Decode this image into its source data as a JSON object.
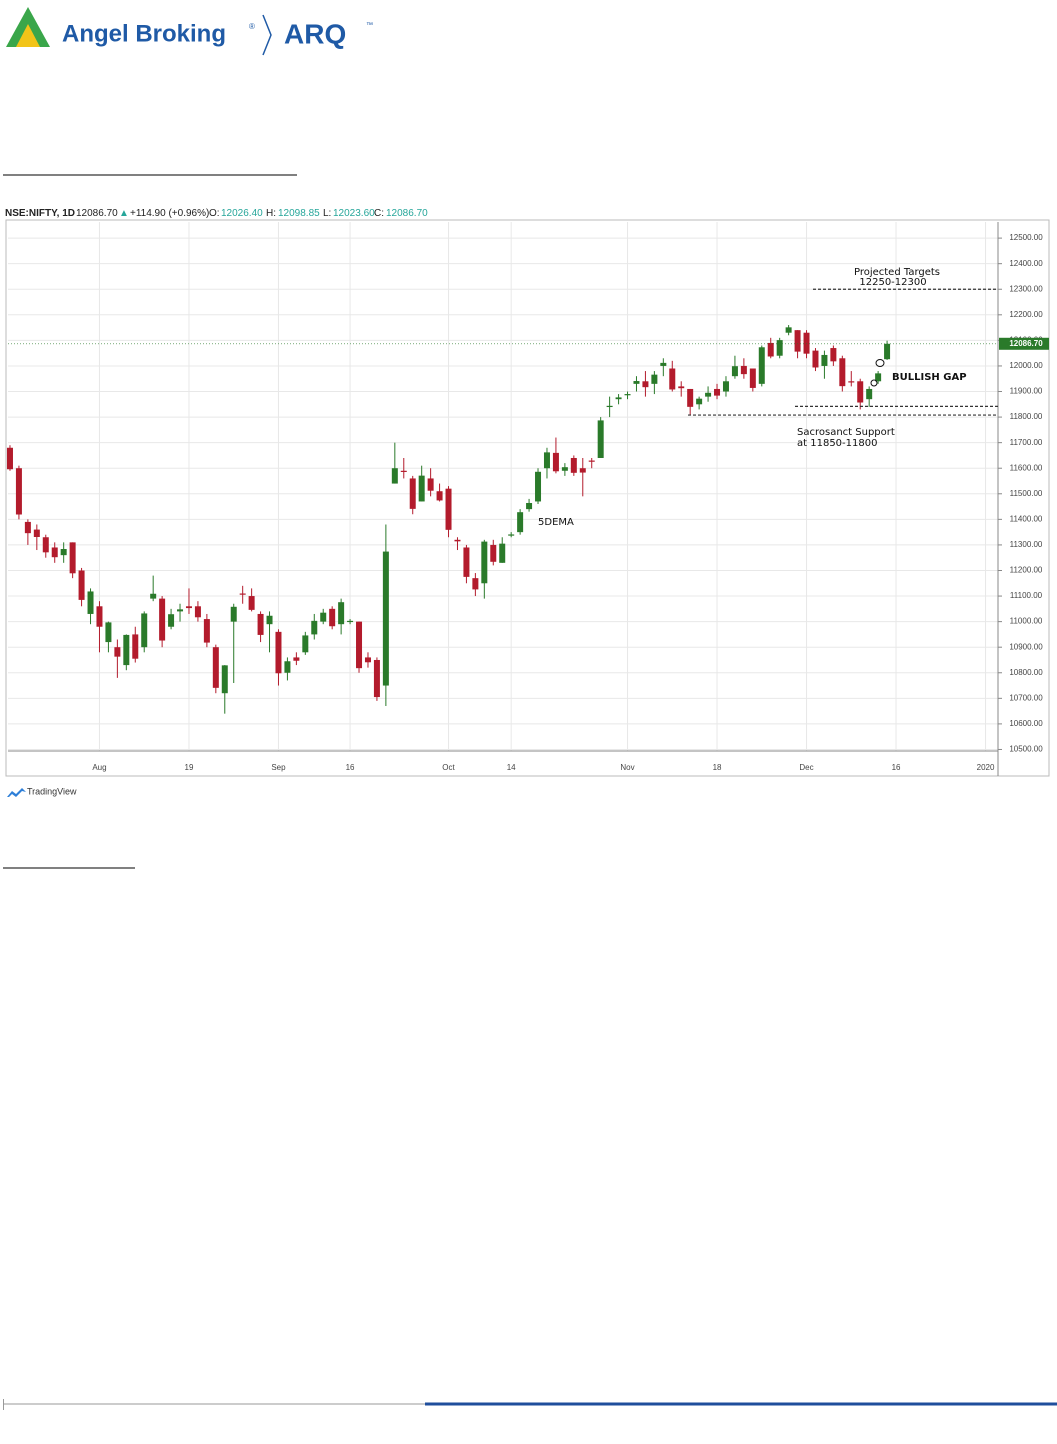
{
  "header": {
    "brand": "Angel Broking",
    "registered": "®",
    "product": "ARQ",
    "product_mark": "™"
  },
  "chart_data": {
    "type": "candlestick",
    "legend": {
      "symbol": "NSE:NIFTY, 1D",
      "last": "12086.70",
      "arrow": "▲",
      "change": "+114.90 (+0.96%)",
      "o_label": "O:",
      "open": "12026.40",
      "h_label": "H:",
      "high": "12098.85",
      "l_label": "L:",
      "low": "12023.60",
      "c_label": "C:",
      "close": "12086.70"
    },
    "categories": [
      null,
      null,
      null,
      null,
      null,
      null,
      null,
      null,
      null,
      null,
      "Aug",
      null,
      null,
      null,
      null,
      null,
      null,
      null,
      null,
      null,
      "19",
      null,
      null,
      null,
      null,
      null,
      null,
      null,
      null,
      null,
      "Sep",
      null,
      null,
      null,
      null,
      null,
      null,
      null,
      "16",
      null,
      null,
      null,
      null,
      null,
      null,
      null,
      null,
      null,
      null,
      "Oct",
      null,
      null,
      null,
      null,
      null,
      null,
      "14",
      null,
      null,
      null,
      null,
      null,
      null,
      null,
      null,
      null,
      null,
      null,
      null,
      "Nov",
      null,
      null,
      null,
      null,
      null,
      null,
      null,
      null,
      null,
      "18",
      null,
      null,
      null,
      null,
      null,
      null,
      null,
      null,
      null,
      "Dec",
      null,
      null,
      null,
      null,
      null,
      null,
      null,
      null,
      null,
      "16",
      null,
      null,
      null,
      null,
      null,
      null,
      null,
      null,
      null,
      "2020"
    ],
    "open": [
      11680,
      11600,
      11390,
      11360,
      11330,
      11290,
      11260,
      11310,
      11200,
      11030,
      11060,
      10920,
      10900,
      10830,
      10950,
      10900,
      11090,
      11090,
      10980,
      11040,
      11060,
      11060,
      11010,
      10900,
      10720,
      11000,
      11110,
      11100,
      11030,
      10990,
      10960,
      10800,
      10860,
      10880,
      10950,
      11000,
      11050,
      10990,
      11000,
      11000,
      10860,
      10850,
      10750,
      11540,
      11590,
      11560,
      11470,
      11560,
      11510,
      11520,
      11320,
      11290,
      11170,
      11150,
      11300,
      11230,
      11340,
      11350,
      11440,
      11470,
      11600,
      11660,
      11590,
      11640,
      11600,
      11630,
      11640,
      11840,
      11870,
      11890,
      11930,
      11940,
      11930,
      12000,
      11990,
      11920,
      11910,
      11850,
      11880,
      11910,
      11900,
      11960,
      12000,
      11990,
      11930,
      12090,
      12040,
      12130,
      12140,
      12130,
      12060,
      12000,
      12070,
      12030,
      11940,
      11940,
      11870,
      11940,
      12026.4,
      null,
      null,
      null,
      null,
      null,
      null,
      null,
      null,
      null,
      null,
      null
    ],
    "high": [
      11690,
      11610,
      11400,
      11380,
      11340,
      11310,
      11310,
      11310,
      11210,
      11130,
      11080,
      11000,
      10930,
      10950,
      10980,
      11040,
      11180,
      11100,
      11050,
      11070,
      11130,
      11080,
      11030,
      10910,
      10830,
      11070,
      11140,
      11130,
      11040,
      11040,
      10970,
      10860,
      10880,
      10960,
      11030,
      11050,
      11060,
      11090,
      11010,
      11000,
      10880,
      10860,
      11380,
      11700,
      11640,
      11570,
      11610,
      11600,
      11540,
      11530,
      11330,
      11300,
      11190,
      11320,
      11320,
      11330,
      11350,
      11440,
      11480,
      11600,
      11680,
      11720,
      11620,
      11650,
      11640,
      11640,
      11800,
      11880,
      11890,
      11900,
      11960,
      11980,
      11980,
      12030,
      12020,
      11940,
      11910,
      11880,
      11920,
      11930,
      11960,
      12040,
      12030,
      11990,
      12080,
      12110,
      12110,
      12160,
      12140,
      12140,
      12070,
      12060,
      12080,
      12040,
      11980,
      11950,
      11920,
      11980,
      12098.85,
      null,
      null,
      null,
      null,
      null,
      null,
      null,
      null,
      null,
      null,
      null
    ],
    "low": [
      11590,
      11400,
      11300,
      11280,
      11250,
      11230,
      11230,
      11170,
      11060,
      10990,
      10880,
      10880,
      10780,
      10810,
      10840,
      10880,
      11080,
      10900,
      10970,
      11000,
      11030,
      11000,
      10900,
      10720,
      10640,
      10760,
      11070,
      11040,
      10920,
      10880,
      10750,
      10770,
      10830,
      10870,
      10930,
      10990,
      10970,
      10950,
      10990,
      10800,
      10820,
      10690,
      10670,
      11540,
      11560,
      11420,
      11470,
      11490,
      11470,
      11330,
      11280,
      11150,
      11100,
      11090,
      11220,
      11230,
      11330,
      11340,
      11430,
      11460,
      11560,
      11580,
      11570,
      11570,
      11490,
      11600,
      11640,
      11800,
      11850,
      11870,
      11900,
      11880,
      11890,
      11960,
      11900,
      11880,
      11810,
      11830,
      11860,
      11870,
      11880,
      11950,
      11950,
      11900,
      11920,
      12030,
      12030,
      12120,
      12030,
      12030,
      11980,
      11950,
      12000,
      11900,
      11920,
      11830,
      11840,
      11930,
      12023.6,
      null,
      null,
      null,
      null,
      null,
      null,
      null,
      null,
      null,
      null,
      null
    ],
    "close": [
      11596,
      11419,
      11346,
      11331,
      11271,
      11252,
      11284,
      11189,
      11085,
      11118,
      10980,
      10997,
      10863,
      10948,
      10855,
      11032,
      11109,
      10926,
      11029,
      11048,
      11053,
      11017,
      10918,
      10741,
      10829,
      11058,
      11106,
      11046,
      10948,
      11023,
      10798,
      10845,
      10847,
      10946,
      11003,
      11035,
      10982,
      11076,
      11003,
      10818,
      10841,
      10705,
      11274,
      11600,
      11588,
      11441,
      11571,
      11512,
      11474,
      11359,
      11314,
      11175,
      11126,
      11313,
      11234,
      11305,
      11341,
      11428,
      11464,
      11586,
      11662,
      11588,
      11604,
      11582,
      11583,
      11627,
      11787,
      11844,
      11877,
      11890,
      11941,
      11917,
      11966,
      12012,
      11908,
      11913,
      11840,
      11872,
      11895,
      11884,
      11940,
      11999,
      11968,
      11914,
      12073,
      12037,
      12101,
      12151,
      12056,
      12048,
      11994,
      12043,
      12018,
      11921,
      11937,
      11857,
      11910,
      11971,
      12086.7,
      null,
      null,
      null,
      null,
      null,
      null,
      null,
      null,
      null,
      null,
      null
    ],
    "up_color": "#2a7a2a",
    "down_color": "#b31b2c",
    "ylim": [
      10494,
      12563
    ],
    "yticks": [
      {
        "value": 10500,
        "label": "10500.00"
      },
      {
        "value": 10600,
        "label": "10600.00"
      },
      {
        "value": 10700,
        "label": "10700.00"
      },
      {
        "value": 10800,
        "label": "10800.00"
      },
      {
        "value": 10900,
        "label": "10900.00"
      },
      {
        "value": 11000,
        "label": "11000.00"
      },
      {
        "value": 11100,
        "label": "11100.00"
      },
      {
        "value": 11200,
        "label": "11200.00"
      },
      {
        "value": 11300,
        "label": "11300.00"
      },
      {
        "value": 11400,
        "label": "11400.00"
      },
      {
        "value": 11500,
        "label": "11500.00"
      },
      {
        "value": 11600,
        "label": "11600.00"
      },
      {
        "value": 11700,
        "label": "11700.00"
      },
      {
        "value": 11800,
        "label": "11800.00"
      },
      {
        "value": 11900,
        "label": "11900.00"
      },
      {
        "value": 12000,
        "label": "12000.00"
      },
      {
        "value": 12100,
        "label": "12100.00"
      },
      {
        "value": 12200,
        "label": "12200.00"
      },
      {
        "value": 12300,
        "label": "12300.00"
      },
      {
        "value": 12400,
        "label": "12400.00"
      },
      {
        "value": 12500,
        "label": "12500.00"
      }
    ],
    "grid": true,
    "last_price": {
      "value": 12086.7,
      "label": "12086.70"
    },
    "levels": [
      12300,
      11842,
      11808
    ],
    "annotations": {
      "targets_title": "Projected Targets",
      "targets": "12250-12300",
      "gap": "BULLISH GAP",
      "support_title": "Sacrosanct Support",
      "support": "at 11850-11800",
      "ema": "5DEMA"
    }
  },
  "footer": {
    "source": "TradingView"
  }
}
